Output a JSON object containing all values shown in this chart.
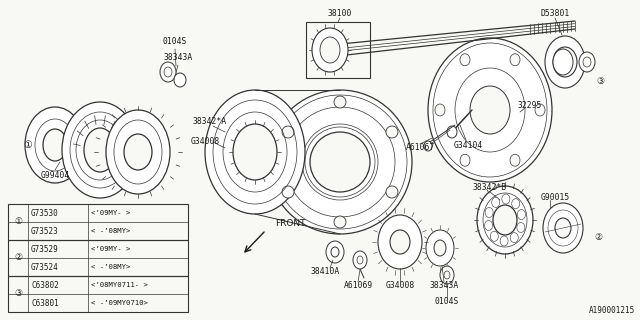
{
  "bg": "#f8f8f4",
  "fg": "#1a1a1a",
  "diagram_id": "A190001215",
  "table_rows": [
    {
      "sym": "1",
      "part": "G73523",
      "desc": "< -’08MY>"
    },
    {
      "sym": "1",
      "part": "G73530",
      "desc": "<’09MY- >"
    },
    {
      "sym": "2",
      "part": "G73524",
      "desc": "< -’08MY>"
    },
    {
      "sym": "2",
      "part": "G73529",
      "desc": "<’09MY- >"
    },
    {
      "sym": "3",
      "part": "C63801",
      "desc": "< -’09MY0710>"
    },
    {
      "sym": "3",
      "part": "C63802",
      "desc": "<’08MY0711- >"
    }
  ]
}
